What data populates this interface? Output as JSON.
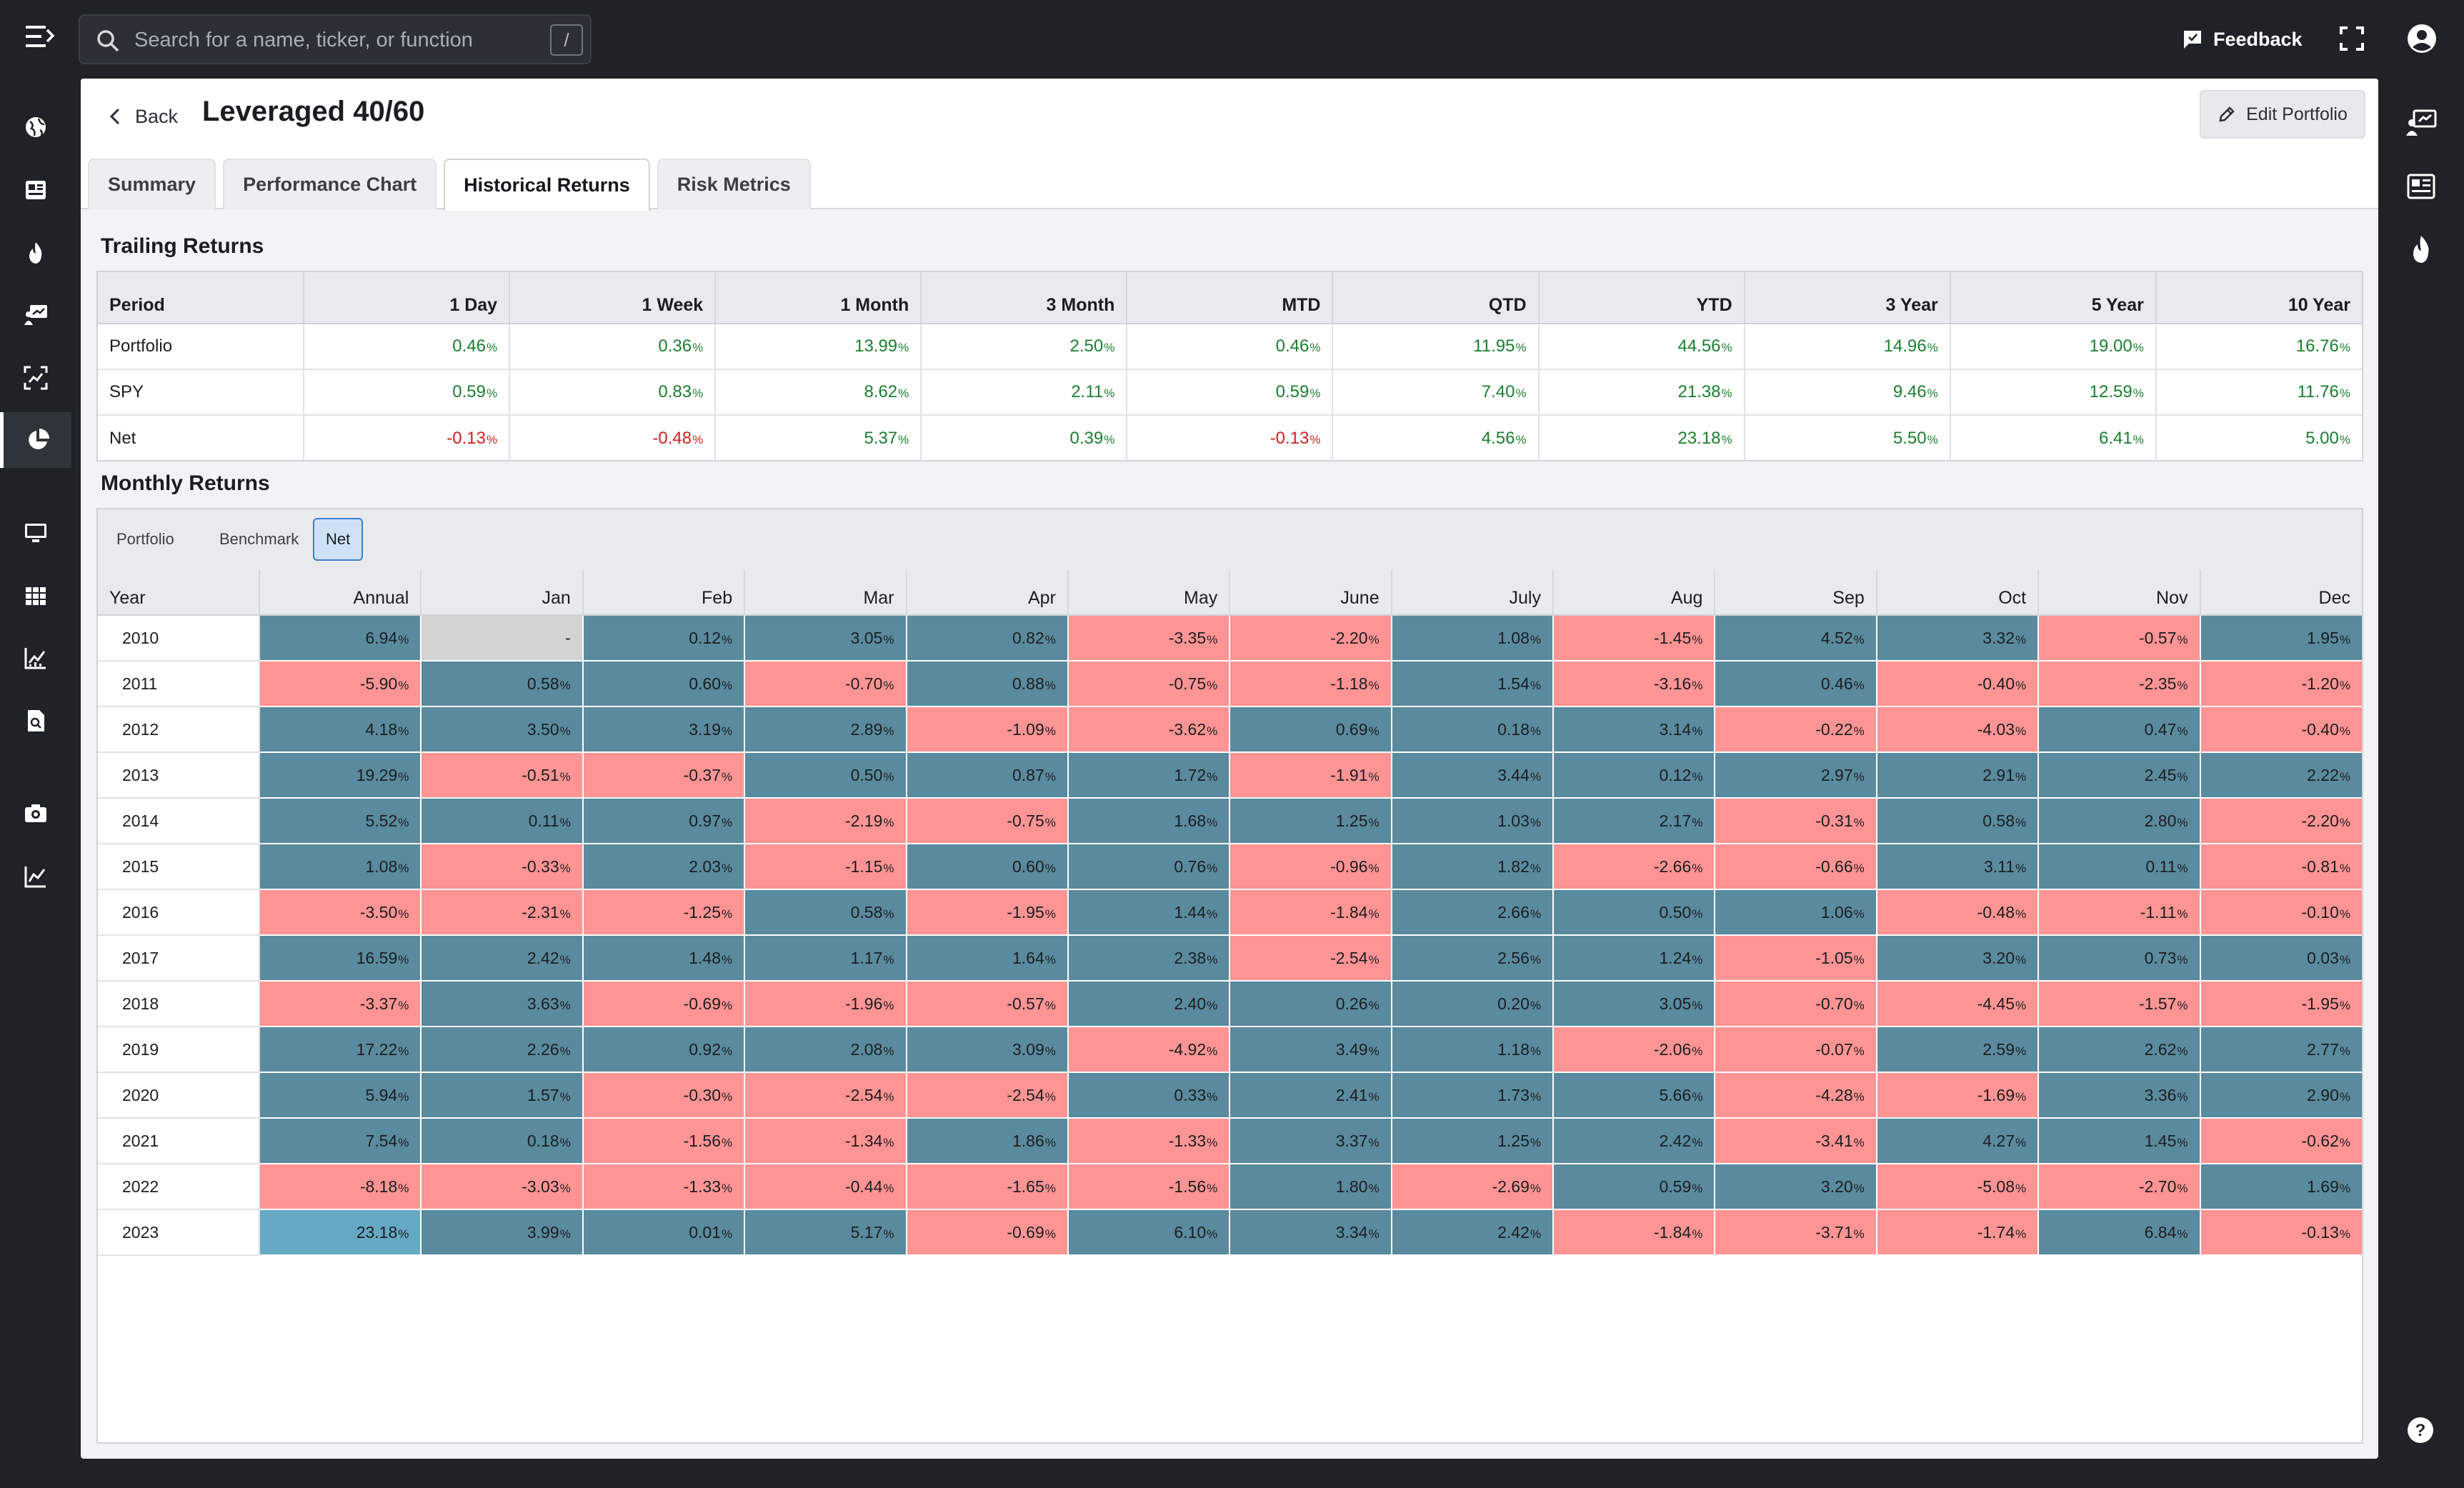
{
  "search": {
    "placeholder": "Search for a name, ticker, or function",
    "shortcut": "/"
  },
  "header": {
    "feedback_label": "Feedback"
  },
  "page": {
    "back_label": "Back",
    "title": "Leveraged 40/60",
    "edit_label": "Edit Portfolio"
  },
  "tabs": [
    {
      "label": "Summary",
      "active": false
    },
    {
      "label": "Performance Chart",
      "active": false
    },
    {
      "label": "Historical Returns",
      "active": true
    },
    {
      "label": "Risk Metrics",
      "active": false
    }
  ],
  "trailing": {
    "title": "Trailing Returns",
    "columns": [
      "Period",
      "1 Day",
      "1 Week",
      "1 Month",
      "3 Month",
      "MTD",
      "QTD",
      "YTD",
      "3 Year",
      "5 Year",
      "10 Year"
    ],
    "rows": [
      {
        "label": "Portfolio",
        "values": [
          "0.46",
          "0.36",
          "13.99",
          "2.50",
          "0.46",
          "11.95",
          "44.56",
          "14.96",
          "19.00",
          "16.76"
        ]
      },
      {
        "label": "SPY",
        "values": [
          "0.59",
          "0.83",
          "8.62",
          "2.11",
          "0.59",
          "7.40",
          "21.38",
          "9.46",
          "12.59",
          "11.76"
        ]
      },
      {
        "label": "Net",
        "values": [
          "-0.13",
          "-0.48",
          "5.37",
          "0.39",
          "-0.13",
          "4.56",
          "23.18",
          "5.50",
          "6.41",
          "5.00"
        ]
      }
    ]
  },
  "monthly": {
    "title": "Monthly Returns",
    "toggles": [
      {
        "label": "Portfolio",
        "active": false
      },
      {
        "label": "Benchmark",
        "active": false
      },
      {
        "label": "Net",
        "active": true
      }
    ],
    "columns": [
      "Year",
      "Annual",
      "Jan",
      "Feb",
      "Mar",
      "Apr",
      "May",
      "June",
      "July",
      "Aug",
      "Sep",
      "Oct",
      "Nov",
      "Dec"
    ],
    "rows": [
      {
        "year": "2010",
        "values": [
          "6.94",
          "-",
          "0.12",
          "3.05",
          "0.82",
          "-3.35",
          "-2.20",
          "1.08",
          "-1.45",
          "4.52",
          "3.32",
          "-0.57",
          "1.95"
        ]
      },
      {
        "year": "2011",
        "values": [
          "-5.90",
          "0.58",
          "0.60",
          "-0.70",
          "0.88",
          "-0.75",
          "-1.18",
          "1.54",
          "-3.16",
          "0.46",
          "-0.40",
          "-2.35",
          "-1.20"
        ]
      },
      {
        "year": "2012",
        "values": [
          "4.18",
          "3.50",
          "3.19",
          "2.89",
          "-1.09",
          "-3.62",
          "0.69",
          "0.18",
          "3.14",
          "-0.22",
          "-4.03",
          "0.47",
          "-0.40"
        ]
      },
      {
        "year": "2013",
        "values": [
          "19.29",
          "-0.51",
          "-0.37",
          "0.50",
          "0.87",
          "1.72",
          "-1.91",
          "3.44",
          "0.12",
          "2.97",
          "2.91",
          "2.45",
          "2.22"
        ]
      },
      {
        "year": "2014",
        "values": [
          "5.52",
          "0.11",
          "0.97",
          "-2.19",
          "-0.75",
          "1.68",
          "1.25",
          "1.03",
          "2.17",
          "-0.31",
          "0.58",
          "2.80",
          "-2.20"
        ]
      },
      {
        "year": "2015",
        "values": [
          "1.08",
          "-0.33",
          "2.03",
          "-1.15",
          "0.60",
          "0.76",
          "-0.96",
          "1.82",
          "-2.66",
          "-0.66",
          "3.11",
          "0.11",
          "-0.81"
        ]
      },
      {
        "year": "2016",
        "values": [
          "-3.50",
          "-2.31",
          "-1.25",
          "0.58",
          "-1.95",
          "1.44",
          "-1.84",
          "2.66",
          "0.50",
          "1.06",
          "-0.48",
          "-1.11",
          "-0.10"
        ]
      },
      {
        "year": "2017",
        "values": [
          "16.59",
          "2.42",
          "1.48",
          "1.17",
          "1.64",
          "2.38",
          "-2.54",
          "2.56",
          "1.24",
          "-1.05",
          "3.20",
          "0.73",
          "0.03"
        ]
      },
      {
        "year": "2018",
        "values": [
          "-3.37",
          "3.63",
          "-0.69",
          "-1.96",
          "-0.57",
          "2.40",
          "0.26",
          "0.20",
          "3.05",
          "-0.70",
          "-4.45",
          "-1.57",
          "-1.95"
        ]
      },
      {
        "year": "2019",
        "values": [
          "17.22",
          "2.26",
          "0.92",
          "2.08",
          "3.09",
          "-4.92",
          "3.49",
          "1.18",
          "-2.06",
          "-0.07",
          "2.59",
          "2.62",
          "2.77"
        ]
      },
      {
        "year": "2020",
        "values": [
          "5.94",
          "1.57",
          "-0.30",
          "-2.54",
          "-2.54",
          "0.33",
          "2.41",
          "1.73",
          "5.66",
          "-4.28",
          "-1.69",
          "3.36",
          "2.90"
        ]
      },
      {
        "year": "2021",
        "values": [
          "7.54",
          "0.18",
          "-1.56",
          "-1.34",
          "1.86",
          "-1.33",
          "3.37",
          "1.25",
          "2.42",
          "-3.41",
          "4.27",
          "1.45",
          "-0.62"
        ]
      },
      {
        "year": "2022",
        "values": [
          "-8.18",
          "-3.03",
          "-1.33",
          "-0.44",
          "-1.65",
          "-1.56",
          "1.80",
          "-2.69",
          "0.59",
          "3.20",
          "-5.08",
          "-2.70",
          "1.69"
        ]
      },
      {
        "year": "2023",
        "values": [
          "23.18",
          "3.99",
          "0.01",
          "5.17",
          "-0.69",
          "6.10",
          "3.34",
          "2.42",
          "-1.84",
          "-3.71",
          "-1.74",
          "6.84",
          "-0.13"
        ]
      }
    ]
  },
  "colors": {
    "positive_cell": "#5a8a9e",
    "negative_cell": "#ff9494",
    "highlight_cell": "#66a9c5",
    "empty_cell": "#d3d3d3",
    "positive_text": "#1a7f2f",
    "negative_text": "#d21f1f",
    "background": "#1f2226"
  },
  "icons": {
    "left_nav": [
      "globe-icon",
      "news-icon",
      "flame-icon",
      "presentation-icon",
      "scan-chart-icon",
      "pie-chart-icon",
      "monitor-icon",
      "grid-icon",
      "line-chart-icon",
      "document-search-icon",
      "camera-icon",
      "trend-icon"
    ],
    "right_rail": [
      "presentation-icon",
      "news-icon",
      "flame-icon"
    ]
  }
}
